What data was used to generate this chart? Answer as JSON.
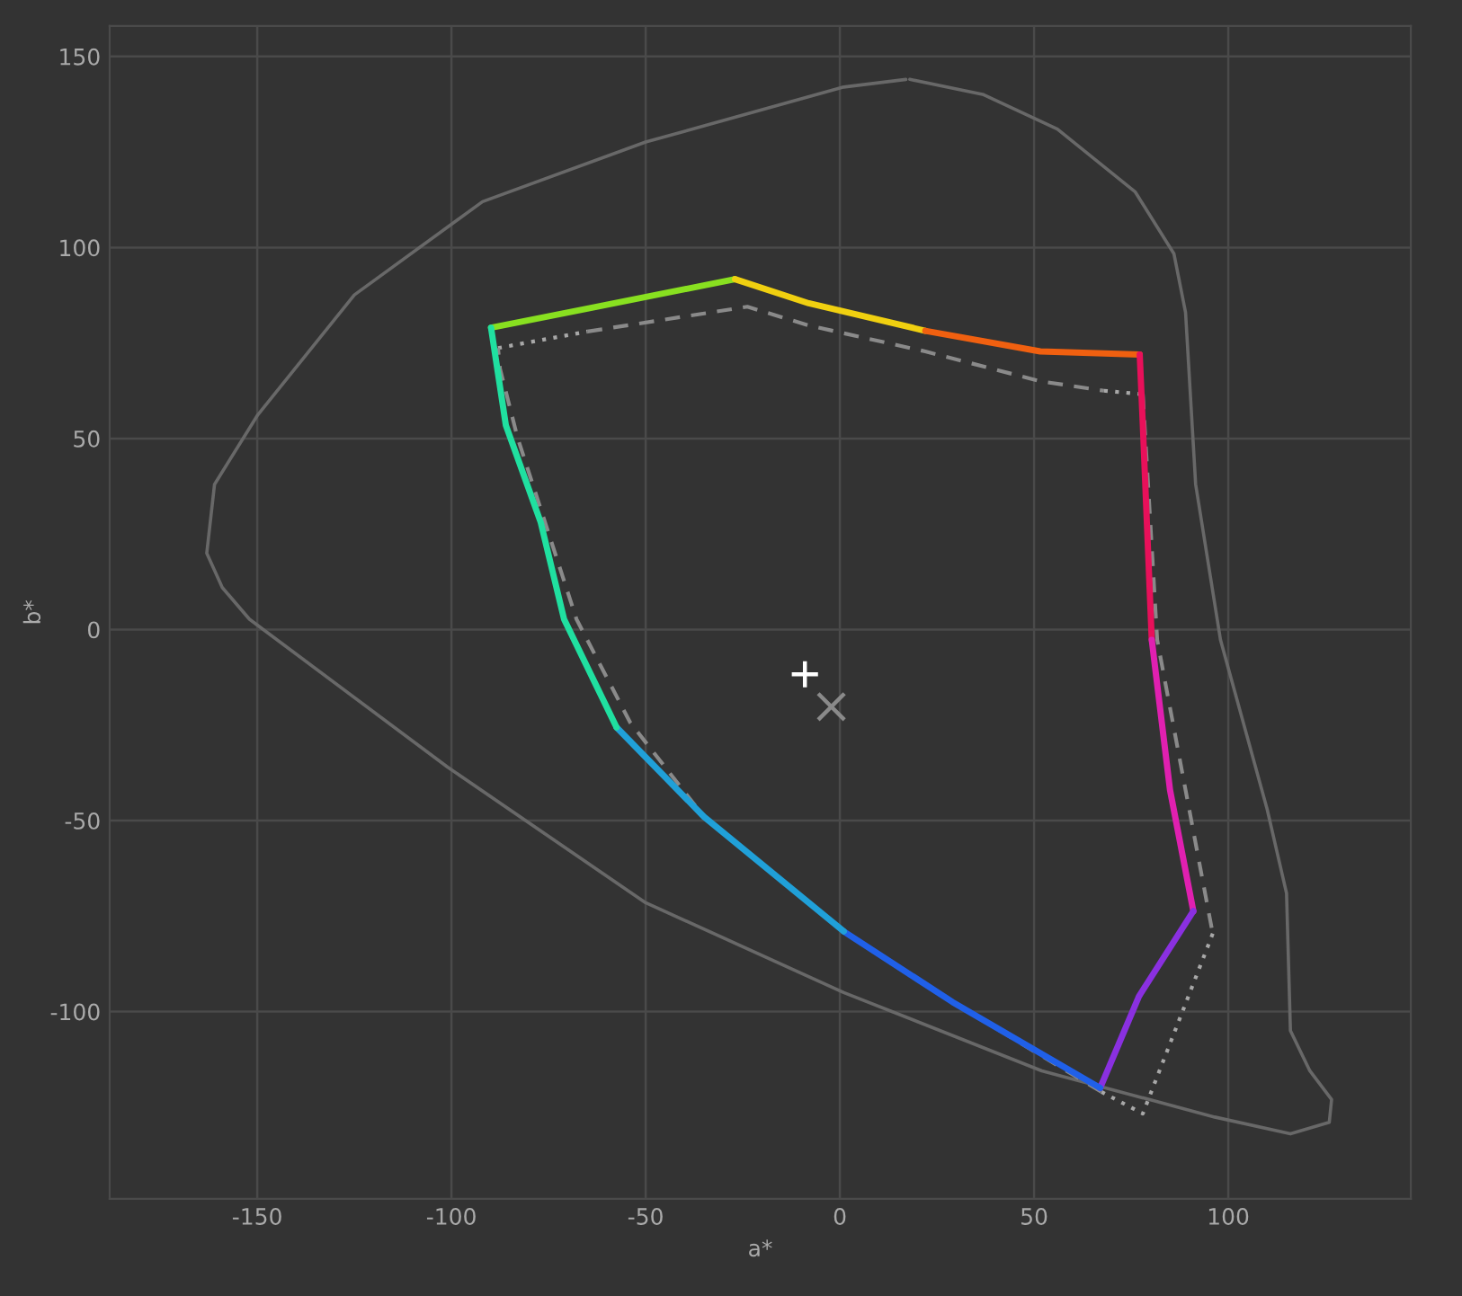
{
  "chart_data": {
    "type": "line",
    "xlabel": "a*",
    "ylabel": "b*",
    "xlim": [
      -188,
      147
    ],
    "ylim": [
      -149,
      158
    ],
    "xticks": [
      -150,
      -100,
      -50,
      0,
      50,
      100
    ],
    "yticks": [
      -100,
      -50,
      0,
      50,
      100,
      150
    ],
    "grid": true,
    "series": [
      {
        "color": "#686868",
        "line_style": "solid",
        "x": [
          18,
          37,
          56,
          76,
          86,
          89,
          91.6,
          98,
          110,
          115,
          116,
          121,
          126.6,
          126,
          116,
          96.5,
          52,
          1,
          -50,
          -101,
          -152,
          -159,
          -163,
          -161,
          -150,
          -125,
          -92,
          -50,
          1,
          17
        ],
        "values": [
          144,
          140,
          131,
          114.6,
          98.4,
          83,
          38,
          -2.7,
          -47,
          -69,
          -105,
          -115.5,
          -123,
          -129,
          -132,
          -127.6,
          -115.5,
          -95,
          -71.5,
          -36,
          2.7,
          11,
          20,
          38,
          56,
          87.6,
          112,
          127.6,
          142,
          144
        ]
      },
      {
        "color": "#a8a8a8",
        "line_style": "dotted",
        "x": [
          -88,
          -65
        ],
        "values": [
          73.7,
          78
        ]
      },
      {
        "color": "#8a8a8a",
        "line_style": "dashed",
        "x": [
          -65,
          -23.8,
          -8,
          22,
          51.6,
          68
        ],
        "values": [
          78,
          84.5,
          79.6,
          72.8,
          65,
          62.5
        ]
      },
      {
        "color": "#a8a8a8",
        "line_style": "dotted",
        "x": [
          68,
          78
        ],
        "values": [
          62.5,
          61.6
        ]
      },
      {
        "color": "#8a8a8a",
        "line_style": "dashed",
        "x": [
          78,
          81.7,
          89,
          96
        ],
        "values": [
          61.6,
          -2.7,
          -42,
          -79.6
        ]
      },
      {
        "color": "#a8a8a8",
        "line_style": "dotted",
        "x": [
          96,
          78,
          67.3
        ],
        "values": [
          -79.6,
          -126.7,
          -121
        ]
      },
      {
        "color": "#8a8a8a",
        "line_style": "dashed",
        "x": [
          67.3,
          29,
          1,
          -35,
          -54,
          -67.8,
          -83,
          -87.5,
          -88
        ],
        "values": [
          -121,
          -97.5,
          -79,
          -49,
          -24.3,
          2.7,
          50.3,
          68.3,
          73.7
        ]
      },
      {
        "color": "#88e020",
        "line_style": "solid",
        "x": [
          -89.8,
          -65,
          -27
        ],
        "values": [
          79,
          84,
          91.7
        ]
      },
      {
        "color": "#f0d010",
        "line_style": "solid",
        "x": [
          -27,
          -8,
          22
        ],
        "values": [
          91.7,
          85.4,
          78.2
        ]
      },
      {
        "color": "#f06010",
        "line_style": "solid",
        "x": [
          22,
          51.6,
          77.2
        ],
        "values": [
          78.2,
          72.8,
          72
        ]
      },
      {
        "color": "#e8105a",
        "line_style": "solid",
        "x": [
          77.2,
          78,
          80.3
        ],
        "values": [
          72,
          53.5,
          -2.7
        ]
      },
      {
        "color": "#e020b0",
        "line_style": "solid",
        "x": [
          80.3,
          85,
          91
        ],
        "values": [
          -2.7,
          -42,
          -73.7
        ]
      },
      {
        "color": "#8a30e0",
        "line_style": "solid",
        "x": [
          91,
          77,
          67
        ],
        "values": [
          -73.7,
          -96,
          -120
        ]
      },
      {
        "color": "#2060e8",
        "line_style": "solid",
        "x": [
          67,
          29,
          1
        ],
        "values": [
          -120,
          -97.5,
          -79
        ]
      },
      {
        "color": "#20a0d8",
        "line_style": "solid",
        "x": [
          1,
          -35,
          -57.5
        ],
        "values": [
          -79,
          -49,
          -25.6
        ]
      },
      {
        "color": "#20e0a0",
        "line_style": "solid",
        "x": [
          -57.5,
          -71,
          -77,
          -86,
          -89.8
        ],
        "values": [
          -25.6,
          2.7,
          28,
          53.5,
          79
        ]
      },
      {
        "type": "scatter",
        "marker": "plus",
        "color": "#ffffff",
        "x": [
          -9
        ],
        "values": [
          -11.7
        ]
      },
      {
        "type": "scatter",
        "marker": "cross",
        "color": "#8a8a8a",
        "x": [
          -2.2
        ],
        "values": [
          -20.2
        ]
      }
    ]
  }
}
